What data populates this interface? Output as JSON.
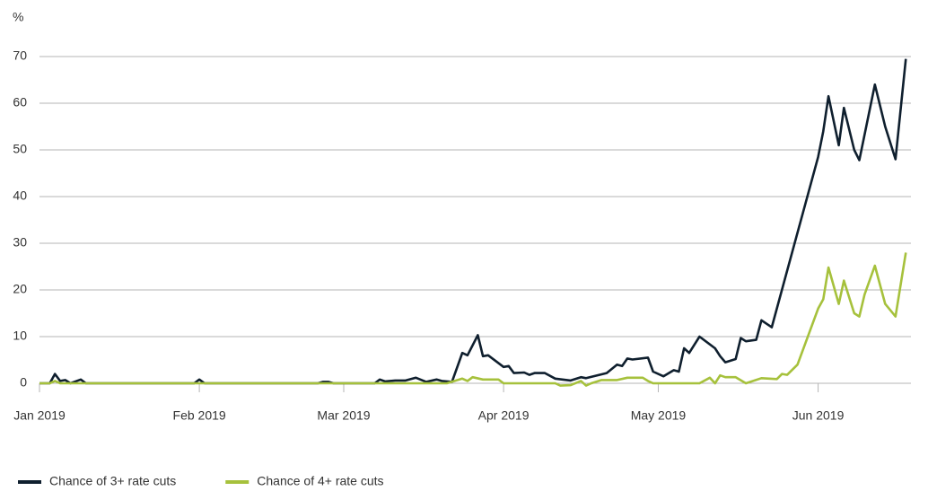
{
  "chart_data": {
    "type": "line",
    "ylabel": "%",
    "xlim": [
      1,
      170
    ],
    "xticks": [
      {
        "value": 1,
        "label": "Jan 2019"
      },
      {
        "value": 32,
        "label": "Feb 2019"
      },
      {
        "value": 60,
        "label": "Mar 2019"
      },
      {
        "value": 91,
        "label": "Apr 2019"
      },
      {
        "value": 121,
        "label": "May 2019"
      },
      {
        "value": 152,
        "label": "Jun 2019"
      }
    ],
    "ylim": [
      0,
      70
    ],
    "yticks": [
      0,
      10,
      20,
      30,
      40,
      50,
      60,
      70
    ],
    "grid": true,
    "legend": "bottom-left",
    "series": [
      {
        "name": "Chance of 3+ rate cuts",
        "color": "#0f1f2e",
        "x": [
          1,
          3,
          4,
          5,
          6,
          7,
          9,
          10,
          31,
          32,
          33,
          55,
          56,
          57,
          58,
          66,
          67,
          68,
          70,
          72,
          74,
          76,
          78,
          79,
          81,
          83,
          84,
          86,
          87,
          88,
          91,
          92,
          93,
          95,
          96,
          97,
          99,
          101,
          104,
          106,
          107,
          111,
          113,
          114,
          115,
          116,
          119,
          120,
          122,
          124,
          125,
          126,
          127,
          129,
          132,
          133,
          134,
          136,
          137,
          138,
          140,
          141,
          143,
          152,
          153,
          154,
          156,
          157,
          159,
          160,
          163,
          165,
          167,
          169
        ],
        "values": [
          0,
          0,
          2,
          0.5,
          0.7,
          0,
          0.8,
          0,
          0,
          0.8,
          0,
          0,
          0.3,
          0.3,
          0,
          0,
          0.8,
          0.4,
          0.6,
          0.6,
          1.2,
          0.3,
          0.8,
          0.5,
          0.3,
          6.5,
          6,
          10.3,
          5.8,
          6,
          3.5,
          3.7,
          2.2,
          2.3,
          1.8,
          2.2,
          2.2,
          1,
          0.6,
          1.3,
          1.1,
          2.2,
          4,
          3.7,
          5.3,
          5.1,
          5.5,
          2.5,
          1.5,
          2.8,
          2.5,
          7.5,
          6.5,
          10,
          7.5,
          5.8,
          4.5,
          5.2,
          9.7,
          9,
          9.3,
          13.5,
          12,
          48.5,
          54,
          61.5,
          51,
          59,
          50,
          47.8,
          64,
          55,
          48,
          69.5
        ]
      },
      {
        "name": "Chance of 4+ rate cuts",
        "color": "#a6c13c",
        "x": [
          1,
          3,
          4,
          5,
          80,
          83,
          84,
          85,
          87,
          90,
          91,
          101,
          102,
          104,
          106,
          107,
          108,
          110,
          113,
          115,
          118,
          119,
          120,
          129,
          131,
          132,
          133,
          134,
          136,
          138,
          141,
          144,
          145,
          146,
          148,
          152,
          153,
          154,
          156,
          157,
          159,
          160,
          161,
          163,
          165,
          167,
          169
        ],
        "values": [
          0,
          0,
          0.5,
          0,
          0,
          1,
          0.5,
          1.3,
          0.8,
          0.8,
          0,
          0,
          -0.5,
          -0.4,
          0.5,
          -0.5,
          0,
          0.7,
          0.7,
          1.2,
          1.2,
          0.5,
          0,
          0,
          1.2,
          0,
          1.7,
          1.3,
          1.3,
          0,
          1.1,
          0.9,
          2,
          1.8,
          4,
          16,
          18,
          24.8,
          17,
          22,
          15,
          14.3,
          19,
          25.2,
          17,
          14.3,
          28
        ]
      }
    ]
  }
}
